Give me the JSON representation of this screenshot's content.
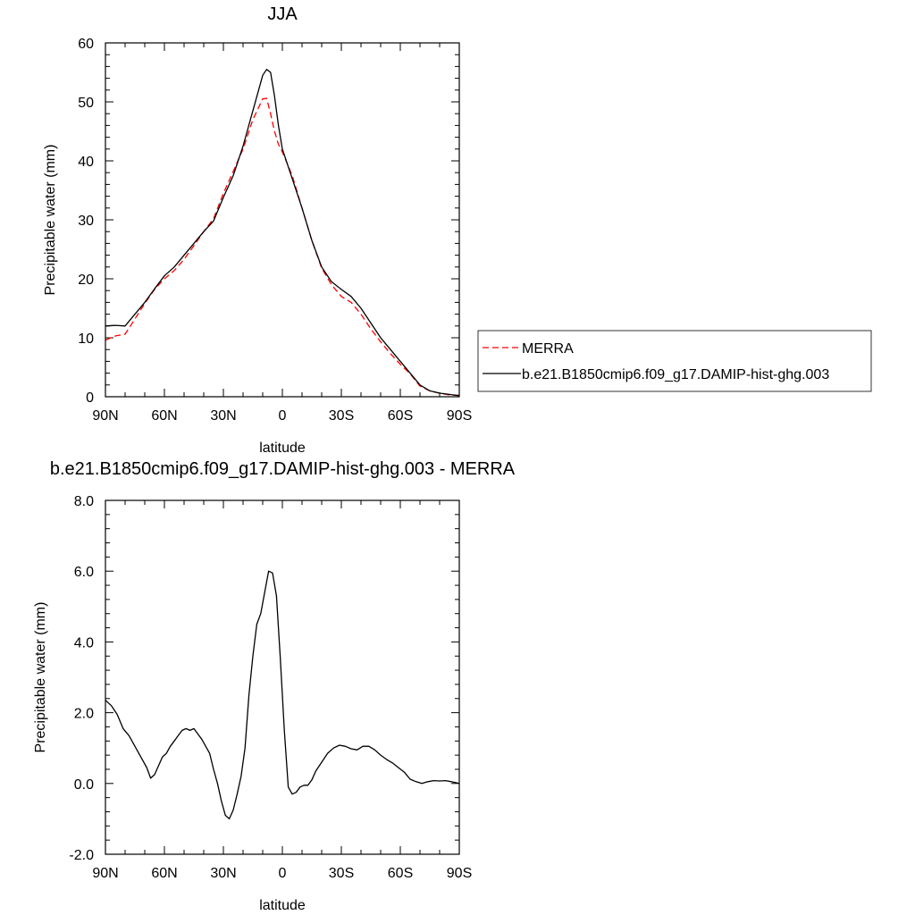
{
  "chart_data": [
    {
      "type": "line",
      "title": "JJA",
      "xlabel": "latitude",
      "ylabel": "Precipitable water (mm)",
      "xlim": [
        90,
        -90
      ],
      "ylim": [
        0,
        60
      ],
      "x_tick_values": [
        90,
        60,
        30,
        0,
        -30,
        -60,
        -90
      ],
      "x_tick_labels": [
        "90N",
        "60N",
        "30N",
        "0",
        "30S",
        "60S",
        "90S"
      ],
      "y_tick_values": [
        0,
        10,
        20,
        30,
        40,
        50,
        60
      ],
      "y_tick_labels": [
        "0",
        "10",
        "20",
        "30",
        "40",
        "50",
        "60"
      ],
      "grid": false,
      "legend_position": "right",
      "series": [
        {
          "name": "MERRA",
          "color": "#ff0000",
          "style": "dashed",
          "x": [
            90,
            85,
            80,
            75,
            70,
            65,
            60,
            55,
            50,
            45,
            40,
            35,
            30,
            25,
            20,
            15,
            10,
            8,
            6,
            4,
            2,
            0,
            -5,
            -10,
            -15,
            -20,
            -25,
            -30,
            -35,
            -40,
            -45,
            -50,
            -55,
            -60,
            -65,
            -70,
            -75,
            -80,
            -85,
            -90
          ],
          "values": [
            9.6,
            10.3,
            10.6,
            13.2,
            15.8,
            18.2,
            20.0,
            21.4,
            23.3,
            25.6,
            28.0,
            30.2,
            34.5,
            38.2,
            42.0,
            47.0,
            50.5,
            50.6,
            48.0,
            45.0,
            42.8,
            41.5,
            37.5,
            32.0,
            26.5,
            21.8,
            19.0,
            17.0,
            16.0,
            14.0,
            11.5,
            9.3,
            7.3,
            5.5,
            3.9,
            1.8,
            1.0,
            0.6,
            0.3,
            0.2
          ]
        },
        {
          "name": "b.e21.B1850cmip6.f09_g17.DAMIP-hist-ghg.003",
          "color": "#000000",
          "style": "solid",
          "x": [
            90,
            85,
            80,
            75,
            70,
            65,
            60,
            55,
            50,
            45,
            40,
            35,
            30,
            25,
            20,
            15,
            10,
            8,
            6,
            4,
            2,
            0,
            -5,
            -10,
            -15,
            -20,
            -25,
            -30,
            -35,
            -40,
            -45,
            -50,
            -55,
            -60,
            -65,
            -70,
            -75,
            -80,
            -85,
            -90
          ],
          "values": [
            12.0,
            12.1,
            12.0,
            14.0,
            16.0,
            18.3,
            20.5,
            22.0,
            24.0,
            26.0,
            28.0,
            29.8,
            33.8,
            37.5,
            42.5,
            48.5,
            54.5,
            55.5,
            55.0,
            51.0,
            46.0,
            42.0,
            37.0,
            32.0,
            26.5,
            22.0,
            19.5,
            18.2,
            17.0,
            15.0,
            12.5,
            10.0,
            8.0,
            6.0,
            4.0,
            2.0,
            1.0,
            0.6,
            0.4,
            0.2
          ]
        }
      ]
    },
    {
      "type": "line",
      "title": "b.e21.B1850cmip6.f09_g17.DAMIP-hist-ghg.003 - MERRA",
      "xlabel": "latitude",
      "ylabel": "Precipitable water (mm)",
      "xlim": [
        90,
        -90
      ],
      "ylim": [
        -2.0,
        8.0
      ],
      "x_tick_values": [
        90,
        60,
        30,
        0,
        -30,
        -60,
        -90
      ],
      "x_tick_labels": [
        "90N",
        "60N",
        "30N",
        "0",
        "30S",
        "60S",
        "90S"
      ],
      "y_tick_values": [
        -2,
        0,
        2,
        4,
        6,
        8
      ],
      "y_tick_labels": [
        "-2.0",
        "0.0",
        "2.0",
        "4.0",
        "6.0",
        "8.0"
      ],
      "grid": false,
      "series": [
        {
          "color": "#000000",
          "style": "solid",
          "x": [
            90,
            87,
            84,
            81,
            78,
            75,
            72,
            69,
            67,
            65,
            63,
            61,
            59,
            57,
            55,
            53,
            51,
            49,
            47,
            45,
            43,
            41,
            39,
            37,
            35,
            33,
            31,
            29,
            27,
            25,
            23,
            21,
            19,
            17,
            15,
            13,
            11,
            9,
            7,
            5,
            3,
            1,
            -1,
            -3,
            -5,
            -7,
            -9,
            -11,
            -13,
            -15,
            -17,
            -20,
            -23,
            -26,
            -29,
            -32,
            -35,
            -38,
            -41,
            -44,
            -47,
            -50,
            -53,
            -56,
            -59,
            -62,
            -65,
            -68,
            -71,
            -74,
            -77,
            -80,
            -83,
            -86,
            -90
          ],
          "values": [
            2.35,
            2.2,
            1.95,
            1.55,
            1.35,
            1.05,
            0.75,
            0.45,
            0.15,
            0.25,
            0.5,
            0.75,
            0.85,
            1.05,
            1.2,
            1.35,
            1.5,
            1.55,
            1.5,
            1.55,
            1.4,
            1.25,
            1.05,
            0.85,
            0.4,
            0.0,
            -0.5,
            -0.9,
            -1.0,
            -0.75,
            -0.3,
            0.2,
            1.0,
            2.5,
            3.6,
            4.5,
            4.8,
            5.4,
            6.0,
            5.95,
            5.3,
            3.5,
            1.5,
            -0.1,
            -0.3,
            -0.25,
            -0.1,
            -0.05,
            -0.05,
            0.1,
            0.35,
            0.6,
            0.85,
            1.0,
            1.08,
            1.05,
            0.98,
            0.95,
            1.05,
            1.05,
            0.95,
            0.8,
            0.68,
            0.58,
            0.45,
            0.32,
            0.12,
            0.05,
            0.0,
            0.05,
            0.08,
            0.07,
            0.08,
            0.05,
            0.0
          ]
        }
      ]
    }
  ]
}
